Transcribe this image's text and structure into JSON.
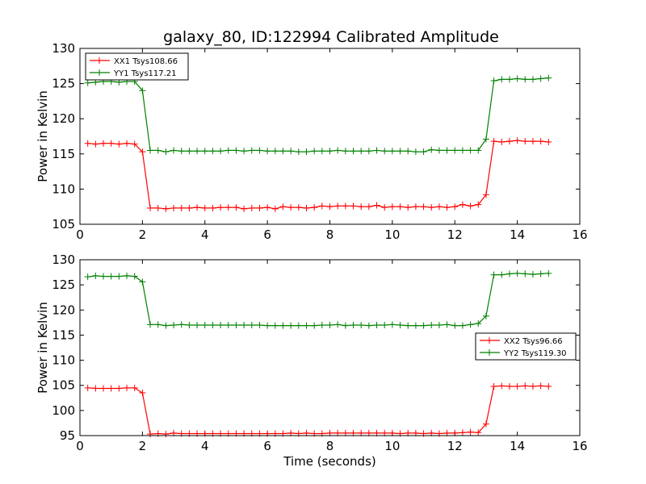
{
  "title": "galaxy_80, ID:122994 Calibrated Amplitude",
  "colors": {
    "red": "#ff0000",
    "green": "#008000",
    "axes": "#000000"
  },
  "chart_data": [
    {
      "type": "line",
      "ylabel": "Power in Kelvin",
      "xlabel": "",
      "xlim": [
        0,
        16
      ],
      "ylim": [
        105,
        130
      ],
      "xticks": [
        "0",
        "2",
        "4",
        "6",
        "8",
        "10",
        "12",
        "14",
        "16"
      ],
      "yticks": [
        "105",
        "110",
        "115",
        "120",
        "125",
        "130"
      ],
      "legend": {
        "placement": "top-left"
      },
      "x": [
        0.25,
        0.5,
        0.75,
        1.0,
        1.25,
        1.5,
        1.75,
        2.0,
        2.25,
        2.5,
        2.75,
        3.0,
        3.25,
        3.5,
        3.75,
        4.0,
        4.25,
        4.5,
        4.75,
        5.0,
        5.25,
        5.5,
        5.75,
        6.0,
        6.25,
        6.5,
        6.75,
        7.0,
        7.25,
        7.5,
        7.75,
        8.0,
        8.25,
        8.5,
        8.75,
        9.0,
        9.25,
        9.5,
        9.75,
        10.0,
        10.25,
        10.5,
        10.75,
        11.0,
        11.25,
        11.5,
        11.75,
        12.0,
        12.25,
        12.5,
        12.75,
        13.0,
        13.25,
        13.5,
        13.75,
        14.0,
        14.25,
        14.5,
        14.75,
        15.0
      ],
      "series": [
        {
          "name": "XX1 Tsys108.66",
          "color": "#ff0000",
          "values": [
            116.5,
            116.4,
            116.5,
            116.5,
            116.4,
            116.5,
            116.4,
            115.3,
            107.3,
            107.3,
            107.2,
            107.3,
            107.3,
            107.3,
            107.4,
            107.3,
            107.3,
            107.4,
            107.4,
            107.4,
            107.2,
            107.3,
            107.3,
            107.4,
            107.2,
            107.5,
            107.4,
            107.4,
            107.3,
            107.4,
            107.6,
            107.5,
            107.6,
            107.6,
            107.6,
            107.5,
            107.5,
            107.7,
            107.4,
            107.5,
            107.5,
            107.4,
            107.5,
            107.5,
            107.4,
            107.5,
            107.4,
            107.5,
            107.8,
            107.6,
            107.8,
            109.2,
            116.8,
            116.7,
            116.8,
            116.9,
            116.8,
            116.8,
            116.8,
            116.7
          ]
        },
        {
          "name": "YY1 Tsys117.21",
          "color": "#008000",
          "values": [
            125.1,
            125.2,
            125.3,
            125.3,
            125.2,
            125.3,
            125.3,
            124.0,
            115.5,
            115.5,
            115.3,
            115.5,
            115.4,
            115.4,
            115.4,
            115.4,
            115.4,
            115.4,
            115.5,
            115.5,
            115.4,
            115.5,
            115.5,
            115.4,
            115.4,
            115.4,
            115.4,
            115.3,
            115.3,
            115.4,
            115.4,
            115.4,
            115.5,
            115.4,
            115.4,
            115.4,
            115.4,
            115.5,
            115.4,
            115.4,
            115.4,
            115.4,
            115.3,
            115.3,
            115.6,
            115.5,
            115.5,
            115.5,
            115.5,
            115.5,
            115.5,
            117.1,
            125.4,
            125.6,
            125.6,
            125.7,
            125.6,
            125.6,
            125.7,
            125.8
          ]
        }
      ]
    },
    {
      "type": "line",
      "ylabel": "Power in Kelvin",
      "xlabel": "Time (seconds)",
      "xlim": [
        0,
        16
      ],
      "ylim": [
        95,
        130
      ],
      "xticks": [
        "0",
        "2",
        "4",
        "6",
        "8",
        "10",
        "12",
        "14",
        "16"
      ],
      "yticks": [
        "95",
        "100",
        "105",
        "110",
        "115",
        "120",
        "125",
        "130"
      ],
      "legend": {
        "placement": "center-right"
      },
      "x": [
        0.25,
        0.5,
        0.75,
        1.0,
        1.25,
        1.5,
        1.75,
        2.0,
        2.25,
        2.5,
        2.75,
        3.0,
        3.25,
        3.5,
        3.75,
        4.0,
        4.25,
        4.5,
        4.75,
        5.0,
        5.25,
        5.5,
        5.75,
        6.0,
        6.25,
        6.5,
        6.75,
        7.0,
        7.25,
        7.5,
        7.75,
        8.0,
        8.25,
        8.5,
        8.75,
        9.0,
        9.25,
        9.5,
        9.75,
        10.0,
        10.25,
        10.5,
        10.75,
        11.0,
        11.25,
        11.5,
        11.75,
        12.0,
        12.25,
        12.5,
        12.75,
        13.0,
        13.25,
        13.5,
        13.75,
        14.0,
        14.25,
        14.5,
        14.75,
        15.0
      ],
      "series": [
        {
          "name": "XX2 Tsys96.66",
          "color": "#ff0000",
          "values": [
            104.5,
            104.4,
            104.4,
            104.4,
            104.4,
            104.5,
            104.5,
            103.5,
            95.3,
            95.4,
            95.3,
            95.5,
            95.4,
            95.4,
            95.4,
            95.4,
            95.4,
            95.4,
            95.4,
            95.4,
            95.4,
            95.4,
            95.4,
            95.4,
            95.4,
            95.4,
            95.5,
            95.4,
            95.5,
            95.4,
            95.4,
            95.5,
            95.5,
            95.5,
            95.5,
            95.5,
            95.5,
            95.5,
            95.5,
            95.5,
            95.4,
            95.5,
            95.5,
            95.4,
            95.5,
            95.4,
            95.5,
            95.5,
            95.6,
            95.7,
            95.6,
            97.3,
            104.8,
            104.9,
            104.8,
            104.8,
            104.9,
            104.8,
            104.9,
            104.8
          ]
        },
        {
          "name": "YY2 Tsys119.30",
          "color": "#008000",
          "values": [
            126.6,
            126.8,
            126.7,
            126.7,
            126.7,
            126.8,
            126.7,
            125.6,
            117.1,
            117.1,
            116.9,
            117.0,
            117.1,
            117.0,
            117.0,
            117.0,
            117.0,
            117.0,
            117.0,
            117.0,
            117.0,
            117.0,
            117.0,
            116.9,
            116.9,
            116.9,
            116.9,
            116.9,
            116.9,
            116.9,
            117.0,
            117.0,
            117.1,
            116.9,
            117.0,
            117.0,
            116.9,
            117.0,
            117.0,
            117.1,
            117.0,
            116.9,
            116.9,
            116.9,
            117.0,
            117.0,
            117.1,
            116.9,
            116.9,
            117.1,
            117.3,
            118.8,
            127.0,
            127.0,
            127.2,
            127.3,
            127.2,
            127.1,
            127.2,
            127.3
          ]
        }
      ]
    }
  ]
}
